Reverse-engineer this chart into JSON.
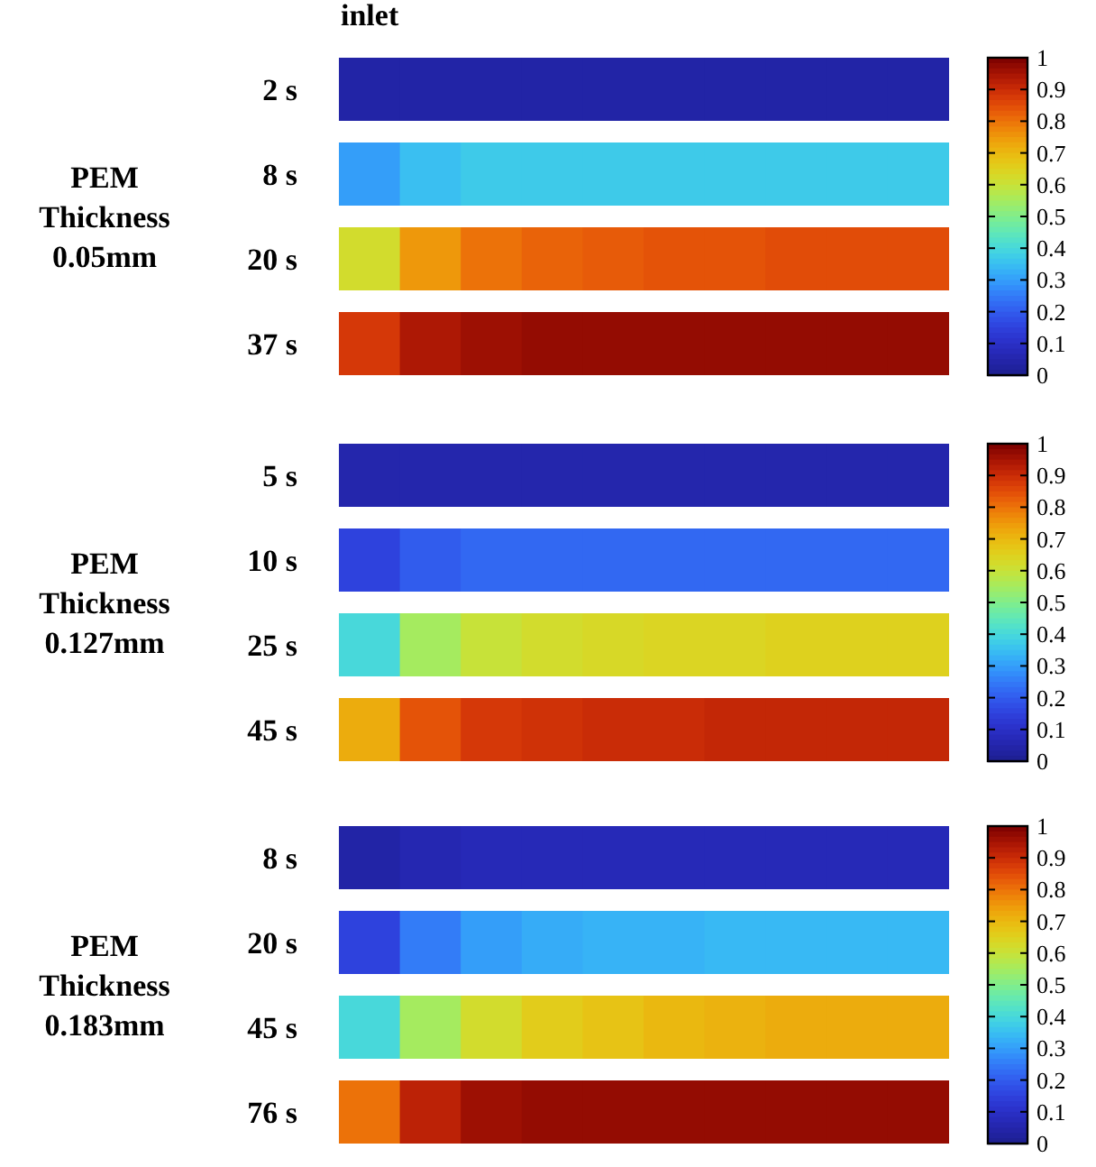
{
  "chart_data": [
    {
      "type": "heatmap",
      "ylabel": "PEM Thickness 0.05mm",
      "annotations": [
        "inlet"
      ],
      "categories": [
        null,
        null,
        null,
        null,
        null,
        null,
        null,
        null,
        null,
        null
      ],
      "y_categories": [
        "2 s",
        "8 s",
        "20 s",
        "37 s"
      ],
      "cells": [
        [
          0.04,
          0.04,
          0.04,
          0.04,
          0.04,
          0.04,
          0.04,
          0.04,
          0.04,
          0.04
        ],
        [
          0.3,
          0.35,
          0.37,
          0.37,
          0.37,
          0.37,
          0.37,
          0.37,
          0.37,
          0.37
        ],
        [
          0.62,
          0.75,
          0.8,
          0.82,
          0.83,
          0.84,
          0.84,
          0.85,
          0.85,
          0.85
        ],
        [
          0.88,
          0.94,
          0.96,
          0.97,
          0.97,
          0.97,
          0.97,
          0.97,
          0.97,
          0.97
        ]
      ],
      "clim": [
        0,
        1
      ],
      "cticks": [
        0,
        0.1,
        0.2,
        0.3,
        0.4,
        0.5,
        0.6,
        0.7,
        0.8,
        0.9,
        1
      ]
    },
    {
      "type": "heatmap",
      "ylabel": "PEM Thickness 0.127mm",
      "categories": [
        null,
        null,
        null,
        null,
        null,
        null,
        null,
        null,
        null,
        null
      ],
      "y_categories": [
        "5 s",
        "10 s",
        "25 s",
        "45 s"
      ],
      "cells": [
        [
          0.05,
          0.05,
          0.05,
          0.05,
          0.05,
          0.05,
          0.05,
          0.05,
          0.05,
          0.05
        ],
        [
          0.15,
          0.2,
          0.22,
          0.22,
          0.22,
          0.22,
          0.22,
          0.22,
          0.22,
          0.22
        ],
        [
          0.4,
          0.55,
          0.6,
          0.62,
          0.63,
          0.64,
          0.64,
          0.65,
          0.65,
          0.65
        ],
        [
          0.72,
          0.84,
          0.88,
          0.89,
          0.9,
          0.9,
          0.91,
          0.91,
          0.91,
          0.91
        ]
      ],
      "clim": [
        0,
        1
      ],
      "cticks": [
        0,
        0.1,
        0.2,
        0.3,
        0.4,
        0.5,
        0.6,
        0.7,
        0.8,
        0.9,
        1
      ]
    },
    {
      "type": "heatmap",
      "ylabel": "PEM Thickness 0.183mm",
      "categories": [
        null,
        null,
        null,
        null,
        null,
        null,
        null,
        null,
        null,
        null
      ],
      "y_categories": [
        "8 s",
        "20 s",
        "45 s",
        "76 s"
      ],
      "cells": [
        [
          0.04,
          0.06,
          0.07,
          0.07,
          0.07,
          0.07,
          0.07,
          0.07,
          0.07,
          0.07
        ],
        [
          0.15,
          0.25,
          0.3,
          0.32,
          0.33,
          0.33,
          0.34,
          0.34,
          0.34,
          0.34
        ],
        [
          0.4,
          0.55,
          0.62,
          0.66,
          0.68,
          0.7,
          0.71,
          0.72,
          0.72,
          0.72
        ],
        [
          0.8,
          0.92,
          0.96,
          0.97,
          0.97,
          0.97,
          0.97,
          0.97,
          0.97,
          0.97
        ]
      ],
      "clim": [
        0,
        1
      ],
      "cticks": [
        0,
        0.1,
        0.2,
        0.3,
        0.4,
        0.5,
        0.6,
        0.7,
        0.8,
        0.9,
        1
      ]
    }
  ]
}
